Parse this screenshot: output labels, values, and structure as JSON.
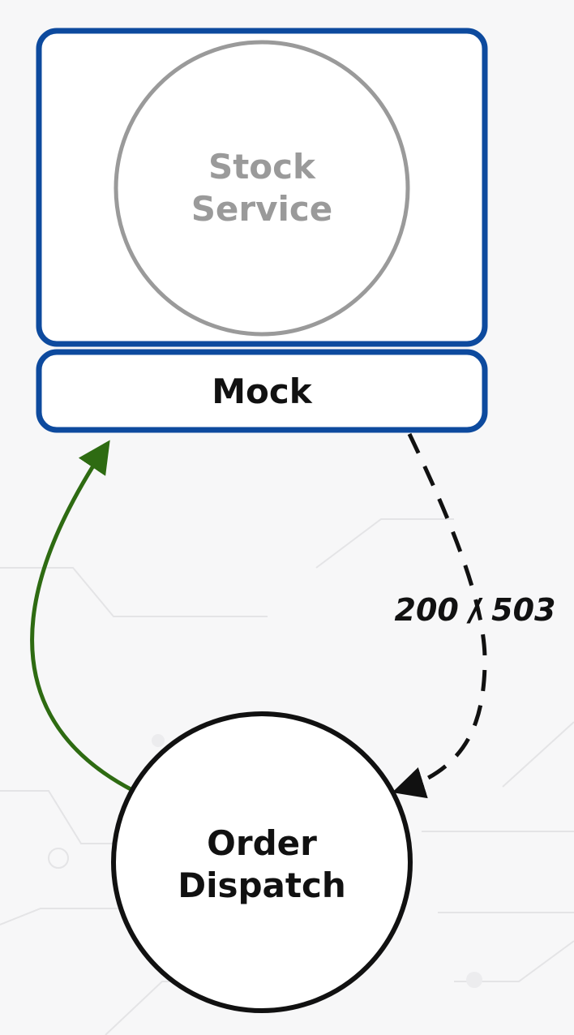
{
  "nodes": {
    "stock_service": {
      "line1": "Stock",
      "line2": "Service"
    },
    "mock": {
      "label": "Mock"
    },
    "order_dispatch": {
      "line1": "Order",
      "line2": "Dispatch"
    }
  },
  "edges": {
    "response_label": "200 / 503"
  },
  "colors": {
    "background": "#f7f7f8",
    "container_border": "#0d4a9e",
    "inner_circle": "#9a9a9a",
    "inner_text": "#9a9a9a",
    "request_arrow": "#2e6b12",
    "response_arrow": "#111111",
    "text_dark": "#111111",
    "circuit_lines": "#e4e4e6"
  }
}
